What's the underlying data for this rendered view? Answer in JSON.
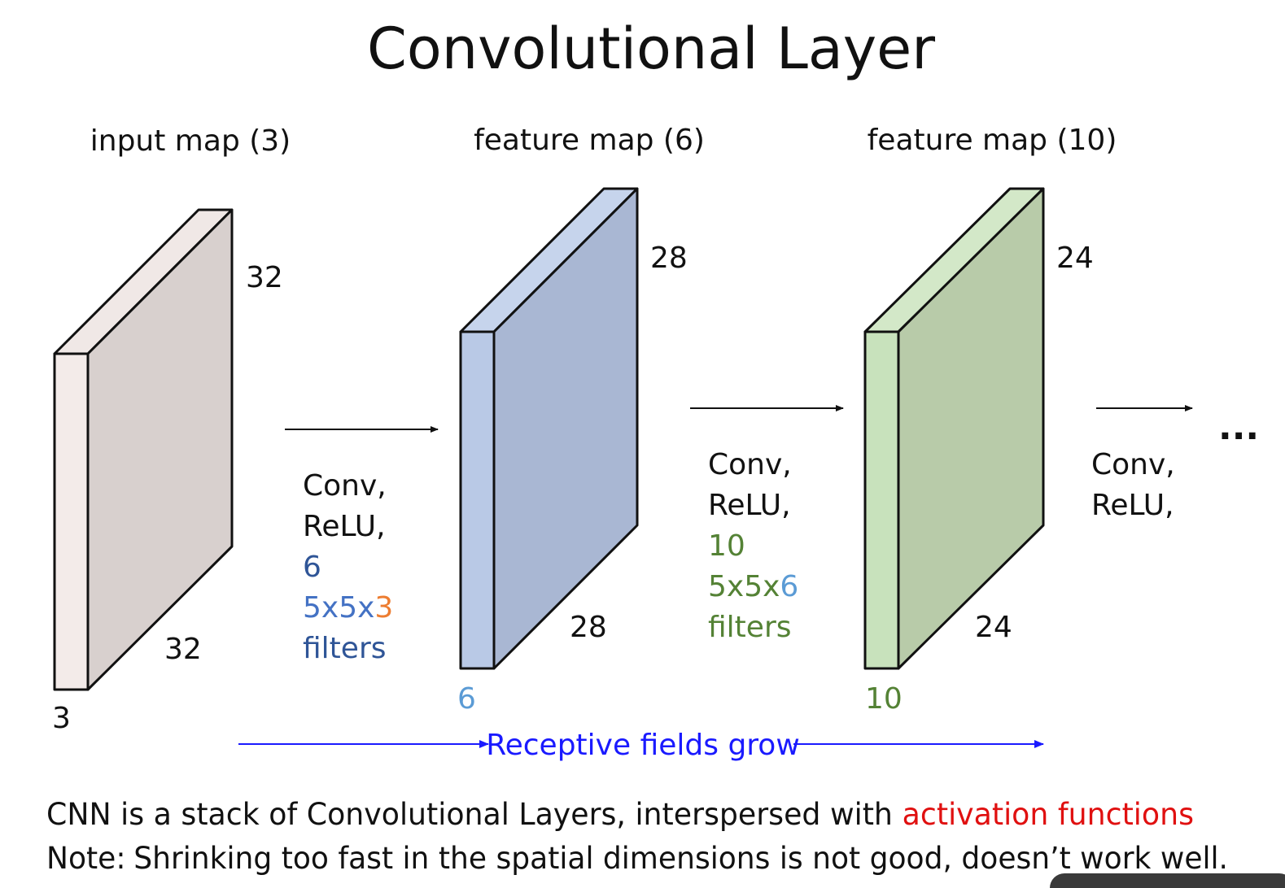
{
  "title": "Convolutional Layer",
  "maps": [
    {
      "label": "input map (3)",
      "height": "32",
      "width": "32",
      "depth": "3"
    },
    {
      "label": "feature map (6)",
      "height": "28",
      "width": "28",
      "depth": "6"
    },
    {
      "label": "feature map (10)",
      "height": "24",
      "width": "24",
      "depth": "10"
    }
  ],
  "ops": [
    {
      "lines": [
        "Conv,",
        "ReLU,"
      ],
      "count": "6",
      "kernel": "5x5x",
      "kernel_depth": "3",
      "filters": "filters"
    },
    {
      "lines": [
        "Conv,",
        "ReLU,"
      ],
      "count": "10",
      "kernel": "5x5x",
      "kernel_depth": "6",
      "filters": "filters"
    },
    {
      "lines": [
        "Conv,",
        "ReLU,"
      ]
    }
  ],
  "ellipsis": "...",
  "receptive": "Receptive fields grow",
  "notes": {
    "line1": "CNN is a stack of Convolutional Layers, interspersed with",
    "line1_highlight": "activation functions",
    "line2_label": "Note:",
    "line2": "Shrinking too fast in the spatial dimensions is not good, doesn’t work well."
  }
}
